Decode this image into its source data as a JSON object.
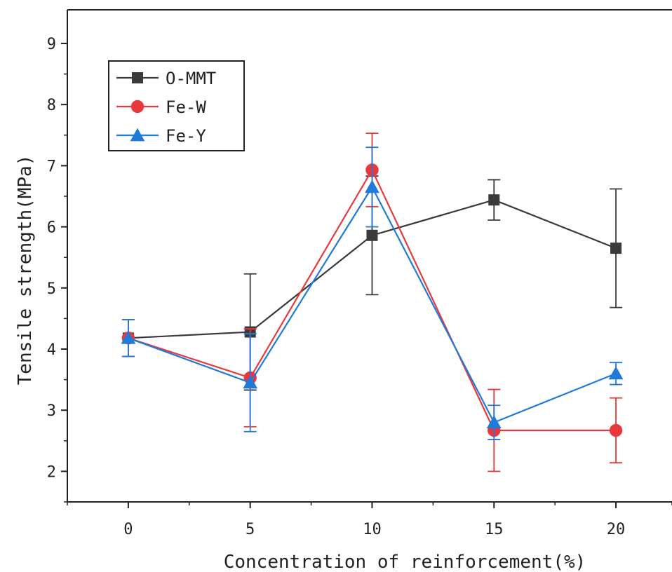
{
  "chart_data": {
    "type": "line",
    "xlabel": "Concentration of reinforcement(%)",
    "ylabel": "Tensile strength(MPa)",
    "x": [
      0,
      5,
      10,
      15,
      20
    ],
    "xticks": [
      0,
      5,
      10,
      15,
      20
    ],
    "yticks": [
      2,
      3,
      4,
      5,
      6,
      7,
      8,
      9
    ],
    "xlim": [
      -2.5,
      22.3
    ],
    "ylim": [
      1.5,
      9.55
    ],
    "grid": false,
    "legend_position": "top-left",
    "series": [
      {
        "name": "O-MMT",
        "color": "#3a3a3a",
        "marker": "square",
        "values": [
          4.18,
          4.28,
          5.86,
          6.44,
          5.65
        ],
        "error": [
          0.3,
          0.95,
          0.97,
          0.33,
          0.97
        ]
      },
      {
        "name": "Fe-W",
        "color": "#e8383d",
        "marker": "circle",
        "values": [
          4.18,
          3.53,
          6.93,
          2.67,
          2.67
        ],
        "error": [
          0.3,
          0.8,
          0.6,
          0.67,
          0.53
        ]
      },
      {
        "name": "Fe-Y",
        "color": "#1f7ad8",
        "marker": "triangle",
        "values": [
          4.18,
          3.45,
          6.65,
          2.8,
          3.6
        ],
        "error": [
          0.3,
          0.8,
          0.65,
          0.28,
          0.18
        ]
      }
    ]
  }
}
